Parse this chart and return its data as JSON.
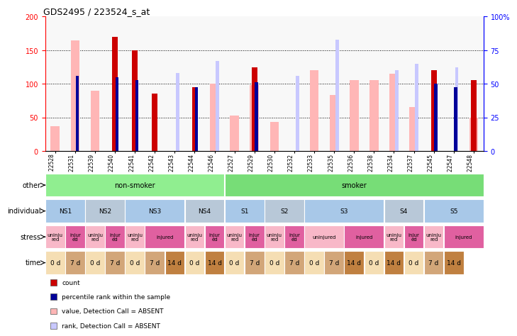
{
  "title": "GDS2495 / 223524_s_at",
  "samples": [
    "GSM122528",
    "GSM122531",
    "GSM122539",
    "GSM122540",
    "GSM122541",
    "GSM122542",
    "GSM122543",
    "GSM122544",
    "GSM122546",
    "GSM122527",
    "GSM122529",
    "GSM122530",
    "GSM122532",
    "GSM122533",
    "GSM122535",
    "GSM122536",
    "GSM122538",
    "GSM122534",
    "GSM122537",
    "GSM122545",
    "GSM122547",
    "GSM122548"
  ],
  "count_values": [
    0,
    0,
    0,
    170,
    150,
    85,
    0,
    95,
    0,
    0,
    125,
    0,
    0,
    0,
    0,
    0,
    0,
    0,
    0,
    120,
    0,
    105
  ],
  "percentile_values": [
    0,
    112,
    0,
    110,
    105,
    0,
    0,
    95,
    0,
    0,
    102,
    0,
    0,
    0,
    0,
    0,
    0,
    0,
    0,
    100,
    95,
    0
  ],
  "absent_value_values": [
    37,
    165,
    90,
    0,
    0,
    0,
    0,
    0,
    100,
    53,
    98,
    43,
    0,
    120,
    83,
    105,
    105,
    115,
    65,
    0,
    0,
    50
  ],
  "absent_rank_values": [
    0,
    0,
    0,
    0,
    0,
    0,
    58,
    0,
    67,
    0,
    0,
    0,
    56,
    0,
    83,
    0,
    0,
    60,
    65,
    0,
    62,
    0
  ],
  "other_spans": [
    {
      "start": 0,
      "end": 9,
      "text": "non-smoker",
      "color": "#90EE90"
    },
    {
      "start": 9,
      "end": 22,
      "text": "smoker",
      "color": "#77DD77"
    }
  ],
  "individual_cells": [
    {
      "start": 0,
      "end": 2,
      "text": "NS1",
      "color": "#A8C8E8"
    },
    {
      "start": 2,
      "end": 4,
      "text": "NS2",
      "color": "#B8C8D8"
    },
    {
      "start": 4,
      "end": 7,
      "text": "NS3",
      "color": "#A8C8E8"
    },
    {
      "start": 7,
      "end": 9,
      "text": "NS4",
      "color": "#B8C8D8"
    },
    {
      "start": 9,
      "end": 11,
      "text": "S1",
      "color": "#A8C8E8"
    },
    {
      "start": 11,
      "end": 13,
      "text": "S2",
      "color": "#B8C8D8"
    },
    {
      "start": 13,
      "end": 17,
      "text": "S3",
      "color": "#A8C8E8"
    },
    {
      "start": 17,
      "end": 19,
      "text": "S4",
      "color": "#B8C8D8"
    },
    {
      "start": 19,
      "end": 22,
      "text": "S5",
      "color": "#A8C8E8"
    }
  ],
  "stress_cells": [
    {
      "start": 0,
      "end": 1,
      "text": "uninju\nred",
      "color": "#F8B8C8"
    },
    {
      "start": 1,
      "end": 2,
      "text": "injur\ned",
      "color": "#E060A0"
    },
    {
      "start": 2,
      "end": 3,
      "text": "uninju\nred",
      "color": "#F8B8C8"
    },
    {
      "start": 3,
      "end": 4,
      "text": "injur\ned",
      "color": "#E060A0"
    },
    {
      "start": 4,
      "end": 5,
      "text": "uninju\nred",
      "color": "#F8B8C8"
    },
    {
      "start": 5,
      "end": 7,
      "text": "injured",
      "color": "#E060A0"
    },
    {
      "start": 7,
      "end": 8,
      "text": "uninju\nred",
      "color": "#F8B8C8"
    },
    {
      "start": 8,
      "end": 9,
      "text": "injur\ned",
      "color": "#E060A0"
    },
    {
      "start": 9,
      "end": 10,
      "text": "uninju\nred",
      "color": "#F8B8C8"
    },
    {
      "start": 10,
      "end": 11,
      "text": "injur\ned",
      "color": "#E060A0"
    },
    {
      "start": 11,
      "end": 12,
      "text": "uninju\nred",
      "color": "#F8B8C8"
    },
    {
      "start": 12,
      "end": 13,
      "text": "injur\ned",
      "color": "#E060A0"
    },
    {
      "start": 13,
      "end": 15,
      "text": "uninjured",
      "color": "#F8B8C8"
    },
    {
      "start": 15,
      "end": 17,
      "text": "injured",
      "color": "#E060A0"
    },
    {
      "start": 17,
      "end": 18,
      "text": "uninju\nred",
      "color": "#F8B8C8"
    },
    {
      "start": 18,
      "end": 19,
      "text": "injur\ned",
      "color": "#E060A0"
    },
    {
      "start": 19,
      "end": 20,
      "text": "uninju\nred",
      "color": "#F8B8C8"
    },
    {
      "start": 20,
      "end": 22,
      "text": "injured",
      "color": "#E060A0"
    }
  ],
  "time_cells": [
    {
      "start": 0,
      "end": 1,
      "text": "0 d",
      "color": "#F5DEB3"
    },
    {
      "start": 1,
      "end": 2,
      "text": "7 d",
      "color": "#D2A679"
    },
    {
      "start": 2,
      "end": 3,
      "text": "0 d",
      "color": "#F5DEB3"
    },
    {
      "start": 3,
      "end": 4,
      "text": "7 d",
      "color": "#D2A679"
    },
    {
      "start": 4,
      "end": 5,
      "text": "0 d",
      "color": "#F5DEB3"
    },
    {
      "start": 5,
      "end": 6,
      "text": "7 d",
      "color": "#D2A679"
    },
    {
      "start": 6,
      "end": 7,
      "text": "14 d",
      "color": "#C08040"
    },
    {
      "start": 7,
      "end": 8,
      "text": "0 d",
      "color": "#F5DEB3"
    },
    {
      "start": 8,
      "end": 9,
      "text": "14 d",
      "color": "#C08040"
    },
    {
      "start": 9,
      "end": 10,
      "text": "0 d",
      "color": "#F5DEB3"
    },
    {
      "start": 10,
      "end": 11,
      "text": "7 d",
      "color": "#D2A679"
    },
    {
      "start": 11,
      "end": 12,
      "text": "0 d",
      "color": "#F5DEB3"
    },
    {
      "start": 12,
      "end": 13,
      "text": "7 d",
      "color": "#D2A679"
    },
    {
      "start": 13,
      "end": 14,
      "text": "0 d",
      "color": "#F5DEB3"
    },
    {
      "start": 14,
      "end": 15,
      "text": "7 d",
      "color": "#D2A679"
    },
    {
      "start": 15,
      "end": 16,
      "text": "14 d",
      "color": "#C08040"
    },
    {
      "start": 16,
      "end": 17,
      "text": "0 d",
      "color": "#F5DEB3"
    },
    {
      "start": 17,
      "end": 18,
      "text": "14 d",
      "color": "#C08040"
    },
    {
      "start": 18,
      "end": 19,
      "text": "0 d",
      "color": "#F5DEB3"
    },
    {
      "start": 19,
      "end": 20,
      "text": "7 d",
      "color": "#D2A679"
    },
    {
      "start": 20,
      "end": 21,
      "text": "14 d",
      "color": "#C08040"
    }
  ],
  "row_labels": [
    "other",
    "individual",
    "stress",
    "time"
  ],
  "legend_items": [
    {
      "color": "#CC0000",
      "label": "count"
    },
    {
      "color": "#000099",
      "label": "percentile rank within the sample"
    },
    {
      "color": "#FFB6B6",
      "label": "value, Detection Call = ABSENT"
    },
    {
      "color": "#C8C8FF",
      "label": "rank, Detection Call = ABSENT"
    }
  ]
}
